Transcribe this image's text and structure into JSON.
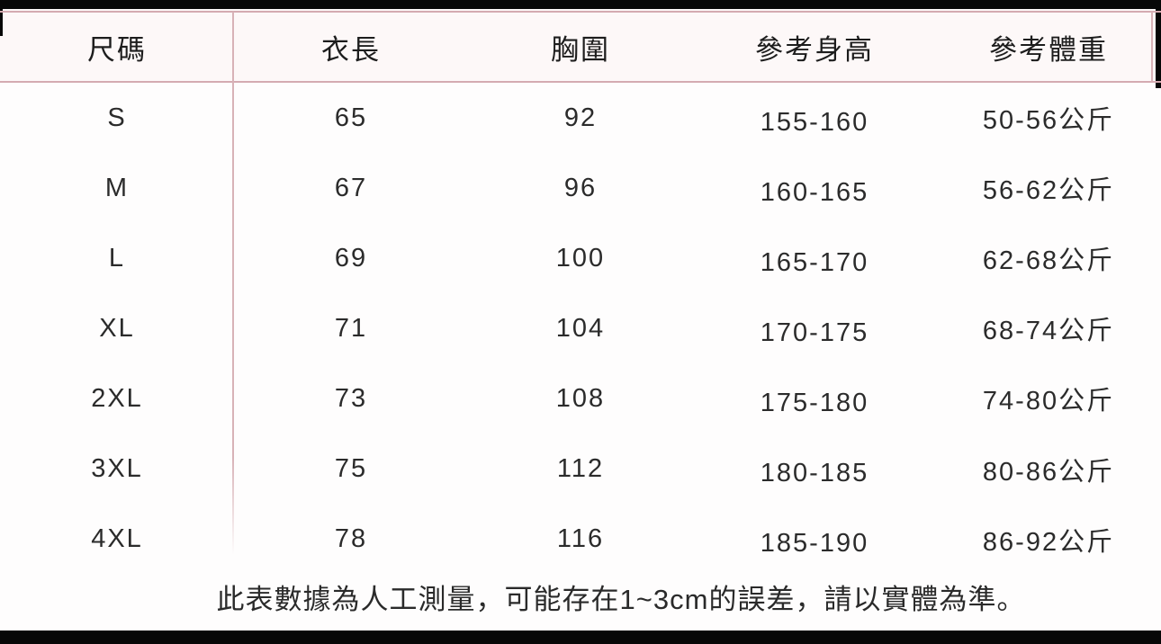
{
  "chart_data": {
    "type": "table",
    "title": "",
    "columns": [
      "尺碼",
      "衣長",
      "胸圍",
      "參考身高",
      "參考體重"
    ],
    "rows": [
      [
        "S",
        "65",
        "92",
        "155-160",
        "50-56公斤"
      ],
      [
        "M",
        "67",
        "96",
        "160-165",
        "56-62公斤"
      ],
      [
        "L",
        "69",
        "100",
        "165-170",
        "62-68公斤"
      ],
      [
        "XL",
        "71",
        "104",
        "170-175",
        "68-74公斤"
      ],
      [
        "2XL",
        "73",
        "108",
        "175-180",
        "74-80公斤"
      ],
      [
        "3XL",
        "75",
        "112",
        "180-185",
        "80-86公斤"
      ],
      [
        "4XL",
        "78",
        "116",
        "185-190",
        "86-92公斤"
      ]
    ],
    "footnote": "此表數據為人工測量，可能存在1~3cm的誤差，請以實體為準。",
    "layout": "grid lines pink, photo cropped with black bars top and bottom"
  },
  "colors": {
    "grid_line_pink": "#d4abb1",
    "crop_bar_black": "#070707",
    "text": "#2b2b2b",
    "background": "#fefdfd"
  }
}
